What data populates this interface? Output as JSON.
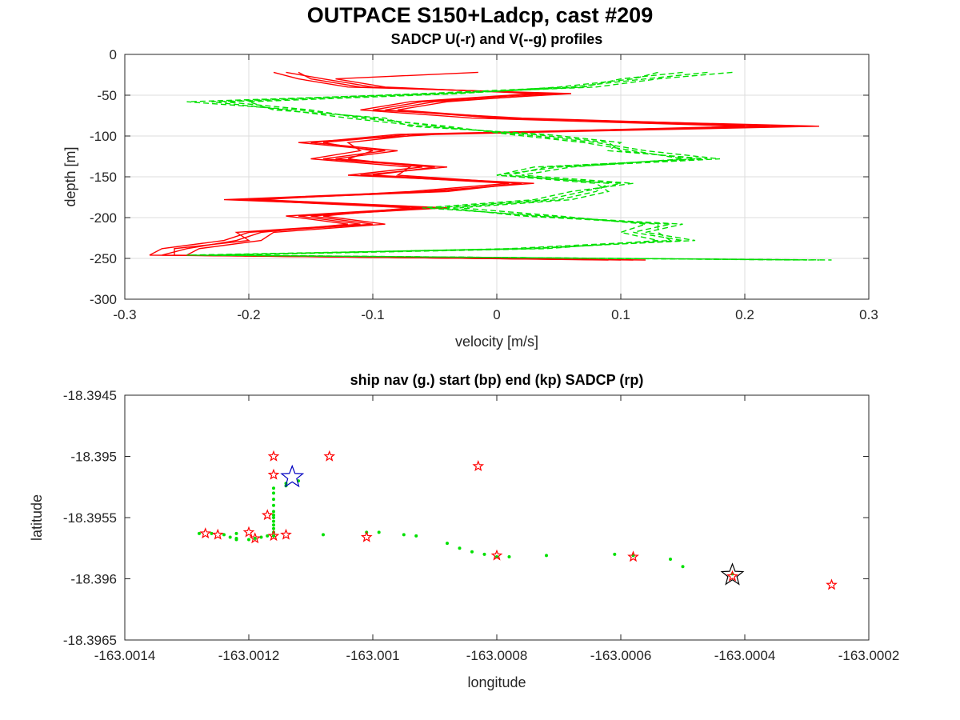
{
  "figure": {
    "title": "OUTPACE S150+Ladcp, cast #209"
  },
  "chart_data": [
    {
      "type": "line",
      "title": "SADCP U(-r) and V(--g) profiles",
      "xlabel": "velocity [m/s]",
      "ylabel": "depth [m]",
      "xlim": [
        -0.3,
        0.3
      ],
      "ylim": [
        -300,
        0
      ],
      "xticks": [
        "-0.3",
        "-0.2",
        "-0.1",
        "0",
        "0.1",
        "0.2",
        "0.3"
      ],
      "yticks": [
        "0",
        "-50",
        "-100",
        "-150",
        "-200",
        "-250",
        "-300"
      ],
      "xtick_values": [
        -0.3,
        -0.2,
        -0.1,
        0,
        0.1,
        0.2,
        0.3
      ],
      "ytick_values": [
        0,
        -50,
        -100,
        -150,
        -200,
        -250,
        -300
      ],
      "grid": true,
      "series": [
        {
          "color": "#ff0000",
          "dash": "solid",
          "depth": [
            -22,
            -30,
            -40,
            -48,
            -58,
            -68,
            -78,
            -88,
            -98,
            -108,
            -118,
            -128,
            -138,
            -148,
            -158,
            -168,
            -178,
            -188,
            -198,
            -208,
            -218,
            -228,
            -238,
            -246,
            -252
          ],
          "profiles": [
            [
              -0.18,
              -0.16,
              -0.12,
              0.06,
              -0.05,
              -0.09,
              0.0,
              0.26,
              -0.05,
              -0.16,
              -0.09,
              -0.14,
              -0.05,
              -0.1,
              0.03,
              -0.06,
              -0.22,
              -0.05,
              -0.15,
              -0.1,
              -0.2,
              -0.22,
              -0.27,
              -0.28,
              0.12
            ],
            [
              -0.17,
              -0.14,
              -0.1,
              0.04,
              -0.06,
              -0.1,
              0.02,
              0.24,
              -0.07,
              -0.14,
              -0.1,
              -0.12,
              -0.06,
              -0.12,
              0.02,
              -0.05,
              -0.2,
              -0.06,
              -0.17,
              -0.12,
              -0.19,
              -0.21,
              -0.25,
              -0.27,
              0.11
            ],
            [
              -0.16,
              -0.15,
              -0.11,
              0.05,
              -0.04,
              -0.08,
              0.01,
              0.22,
              -0.08,
              -0.15,
              -0.08,
              -0.13,
              -0.04,
              -0.11,
              0.01,
              -0.07,
              -0.19,
              -0.04,
              -0.16,
              -0.11,
              -0.21,
              -0.2,
              -0.26,
              -0.26,
              0.1
            ],
            [
              -0.015,
              -0.13,
              -0.09,
              0.03,
              -0.07,
              -0.11,
              -0.02,
              0.2,
              -0.06,
              -0.12,
              -0.11,
              -0.15,
              -0.07,
              -0.08,
              0.02,
              -0.04,
              -0.21,
              -0.07,
              -0.14,
              -0.09,
              -0.18,
              -0.19,
              -0.24,
              -0.25,
              0.09
            ]
          ]
        },
        {
          "color": "#00e000",
          "dash": "dashed",
          "depth": [
            -22,
            -30,
            -40,
            -48,
            -58,
            -68,
            -78,
            -88,
            -98,
            -108,
            -118,
            -128,
            -138,
            -148,
            -158,
            -168,
            -178,
            -188,
            -198,
            -208,
            -218,
            -228,
            -238,
            -246,
            -252
          ],
          "profiles": [
            [
              0.19,
              0.13,
              0.08,
              -0.05,
              -0.25,
              -0.16,
              -0.1,
              -0.05,
              0.02,
              0.08,
              0.12,
              0.18,
              0.05,
              0.0,
              0.1,
              0.07,
              0.04,
              -0.05,
              0.03,
              0.15,
              0.12,
              0.16,
              0.02,
              -0.25,
              0.27
            ],
            [
              0.17,
              0.12,
              0.06,
              -0.06,
              -0.23,
              -0.17,
              -0.12,
              -0.06,
              0.03,
              0.09,
              0.1,
              0.16,
              0.04,
              0.01,
              0.09,
              0.08,
              0.05,
              -0.04,
              0.02,
              0.14,
              0.11,
              0.15,
              0.03,
              -0.24,
              0.26
            ],
            [
              0.15,
              0.1,
              0.07,
              -0.04,
              -0.22,
              -0.15,
              -0.11,
              -0.04,
              0.01,
              0.07,
              0.11,
              0.15,
              0.06,
              0.02,
              0.11,
              0.06,
              0.03,
              -0.06,
              0.04,
              0.13,
              0.13,
              0.14,
              0.01,
              -0.23,
              0.25
            ],
            [
              0.13,
              0.11,
              0.05,
              -0.03,
              -0.2,
              -0.18,
              -0.09,
              -0.07,
              0.04,
              0.1,
              0.09,
              0.17,
              0.03,
              0.0,
              0.08,
              0.09,
              0.06,
              -0.03,
              0.05,
              0.12,
              0.1,
              0.13,
              0.04,
              -0.22,
              0.24
            ]
          ]
        }
      ]
    },
    {
      "type": "scatter",
      "title": "ship nav (g.) start (bp) end (kp) SADCP (rp)",
      "xlabel": "longitude",
      "ylabel": "latitude",
      "xlim": [
        -163.0014,
        -163.0002
      ],
      "ylim": [
        -18.3965,
        -18.3945
      ],
      "xticks": [
        "-163.0014",
        "-163.0012",
        "-163.001",
        "-163.0008",
        "-163.0006",
        "-163.0004",
        "-163.0002"
      ],
      "yticks": [
        "-18.3945",
        "-18.395",
        "-18.3955",
        "-18.396",
        "-18.3965"
      ],
      "xtick_values": [
        -163.0014,
        -163.0012,
        -163.001,
        -163.0008,
        -163.0006,
        -163.0004,
        -163.0002
      ],
      "ytick_values": [
        -18.3945,
        -18.395,
        -18.3955,
        -18.396,
        -18.3965
      ],
      "grid": false,
      "series": [
        {
          "marker": "dot",
          "color": "#00e000",
          "x": [
            -163.00128,
            -163.00126,
            -163.00124,
            -163.00123,
            -163.00122,
            -163.00122,
            -163.00122,
            -163.0012,
            -163.00119,
            -163.00118,
            -163.00117,
            -163.00116,
            -163.00116,
            -163.00116,
            -163.00116,
            -163.00116,
            -163.00116,
            -163.00116,
            -163.00116,
            -163.00116,
            -163.00116,
            -163.00116,
            -163.00116,
            -163.00114,
            -163.00114,
            -163.00112,
            -163.00108,
            -163.00101,
            -163.00099,
            -163.00095,
            -163.00093,
            -163.00088,
            -163.00086,
            -163.00084,
            -163.00082,
            -163.0008,
            -163.00078,
            -163.00072,
            -163.00061,
            -163.00058,
            -163.00052,
            -163.0005,
            -163.00042
          ],
          "y": [
            -18.39563,
            -18.39563,
            -18.39564,
            -18.39566,
            -18.39567,
            -18.39568,
            -18.39563,
            -18.39568,
            -18.39567,
            -18.39566,
            -18.39565,
            -18.39565,
            -18.39562,
            -18.39559,
            -18.39556,
            -18.39553,
            -18.3955,
            -18.39548,
            -18.39545,
            -18.3954,
            -18.39535,
            -18.3953,
            -18.39526,
            -18.39524,
            -18.39522,
            -18.3952,
            -18.39564,
            -18.39562,
            -18.39562,
            -18.39564,
            -18.39565,
            -18.39571,
            -18.39575,
            -18.39578,
            -18.3958,
            -18.39582,
            -18.39582,
            -18.39581,
            -18.3958,
            -18.39581,
            -18.39584,
            -18.3959,
            -18.39596
          ]
        },
        {
          "marker": "star",
          "color": "#ff0000",
          "x": [
            -163.00127,
            -163.00125,
            -163.0012,
            -163.00119,
            -163.00117,
            -163.00116,
            -163.00116,
            -163.00116,
            -163.00114,
            -163.00107,
            -163.00101,
            -163.00083,
            -163.0008,
            -163.00058,
            -163.00042,
            -163.00026
          ],
          "y": [
            -18.39563,
            -18.39564,
            -18.39562,
            -18.39567,
            -18.39548,
            -18.395,
            -18.39515,
            -18.39565,
            -18.39564,
            -18.395,
            -18.39566,
            -18.39508,
            -18.39581,
            -18.39582,
            -18.39598,
            -18.39605
          ]
        },
        {
          "name": "start",
          "marker": "star",
          "color": "#0000c0",
          "x": [
            -163.00113
          ],
          "y": [
            -18.39517
          ]
        },
        {
          "name": "end",
          "marker": "star",
          "color": "#000000",
          "x": [
            -163.00042
          ],
          "y": [
            -18.39597
          ]
        }
      ]
    }
  ]
}
